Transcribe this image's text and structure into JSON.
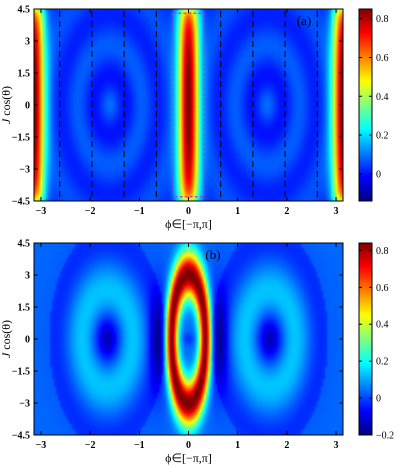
{
  "chart_data": [
    {
      "type": "heatmap",
      "panel_label": "(a)",
      "xlabel": "ϕ∈[−π,π]",
      "ylabel": "J cos(θ)",
      "xlim": [
        -3.14159,
        3.14159
      ],
      "ylim": [
        -4.5,
        4.5
      ],
      "xticks": [
        -3,
        -2,
        -1,
        0,
        1,
        2,
        3
      ],
      "yticks": [
        -4.5,
        -3,
        -1.5,
        0,
        1.5,
        3,
        4.5
      ],
      "colorbar": {
        "range": [
          -0.14,
          0.85
        ],
        "ticks": [
          0,
          0.2,
          0.4,
          0.6,
          0.8
        ]
      },
      "colormap": "jet",
      "dashed_lines_x": [
        -2.618,
        -1.963,
        -1.309,
        -0.654,
        0.654,
        1.309,
        1.963,
        2.618
      ],
      "highlight_box": {
        "x": [
          -0.31,
          0.31
        ],
        "y": [
          -4.3,
          4.3
        ],
        "color": "#cc33cc"
      }
    },
    {
      "type": "heatmap",
      "panel_label": "(b)",
      "xlabel": "ϕ∈[−π,π]",
      "ylabel": "J cos(θ)",
      "xlim": [
        -3.14159,
        3.14159
      ],
      "ylim": [
        -4.5,
        4.5
      ],
      "xticks": [
        -3,
        -2,
        -1,
        0,
        1,
        2,
        3
      ],
      "yticks": [
        -4.5,
        -3,
        -1.5,
        0,
        1.5,
        3,
        4.5
      ],
      "colorbar": {
        "range": [
          -0.2,
          0.84
        ],
        "ticks": [
          -0.2,
          0,
          0.2,
          0.4,
          0.6,
          0.8
        ]
      },
      "colormap": "jet"
    }
  ]
}
